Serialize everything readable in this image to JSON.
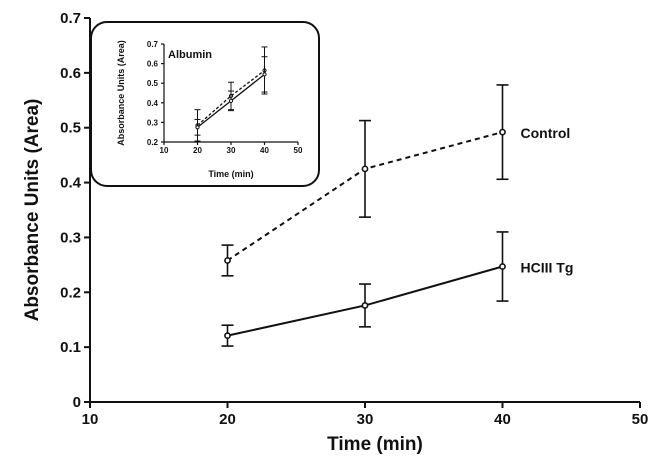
{
  "chart_data": [
    {
      "type": "line",
      "xlabel": "Time (min)",
      "ylabel": "Absorbance Units (Area)",
      "xlim": [
        10,
        50
      ],
      "ylim": [
        0,
        0.7
      ],
      "x_ticks": [
        "10",
        "20",
        "30",
        "40",
        "50"
      ],
      "y_ticks": [
        "0",
        "0.1",
        "0.2",
        "0.3",
        "0.4",
        "0.5",
        "0.6",
        "0.7"
      ],
      "grid": false,
      "x": [
        20,
        30,
        40
      ],
      "series": [
        {
          "name": "Control",
          "style": "dashed",
          "values": [
            0.258,
            0.425,
            0.492
          ],
          "error": [
            0.028,
            0.088,
            0.086
          ]
        },
        {
          "name": "HCIII Tg",
          "style": "solid",
          "values": [
            0.121,
            0.176,
            0.247
          ],
          "error": [
            0.019,
            0.039,
            0.063
          ]
        }
      ]
    },
    {
      "type": "line",
      "title": "Albumin",
      "xlabel": "Time (min)",
      "ylabel": "Absorbance Units (Area)",
      "xlim": [
        10,
        50
      ],
      "ylim": [
        0.2,
        0.7
      ],
      "x_ticks": [
        "10",
        "20",
        "30",
        "40",
        "50"
      ],
      "y_ticks": [
        "0.2",
        "0.3",
        "0.4",
        "0.5",
        "0.6",
        "0.7"
      ],
      "grid": false,
      "x": [
        20,
        30,
        40
      ],
      "series": [
        {
          "style": "dashed",
          "values": [
            0.285,
            0.435,
            0.565
          ],
          "error": [
            0.08,
            0.07,
            0.12
          ]
        },
        {
          "style": "solid",
          "values": [
            0.275,
            0.41,
            0.545
          ],
          "error": [
            0.04,
            0.05,
            0.09
          ]
        }
      ]
    }
  ]
}
